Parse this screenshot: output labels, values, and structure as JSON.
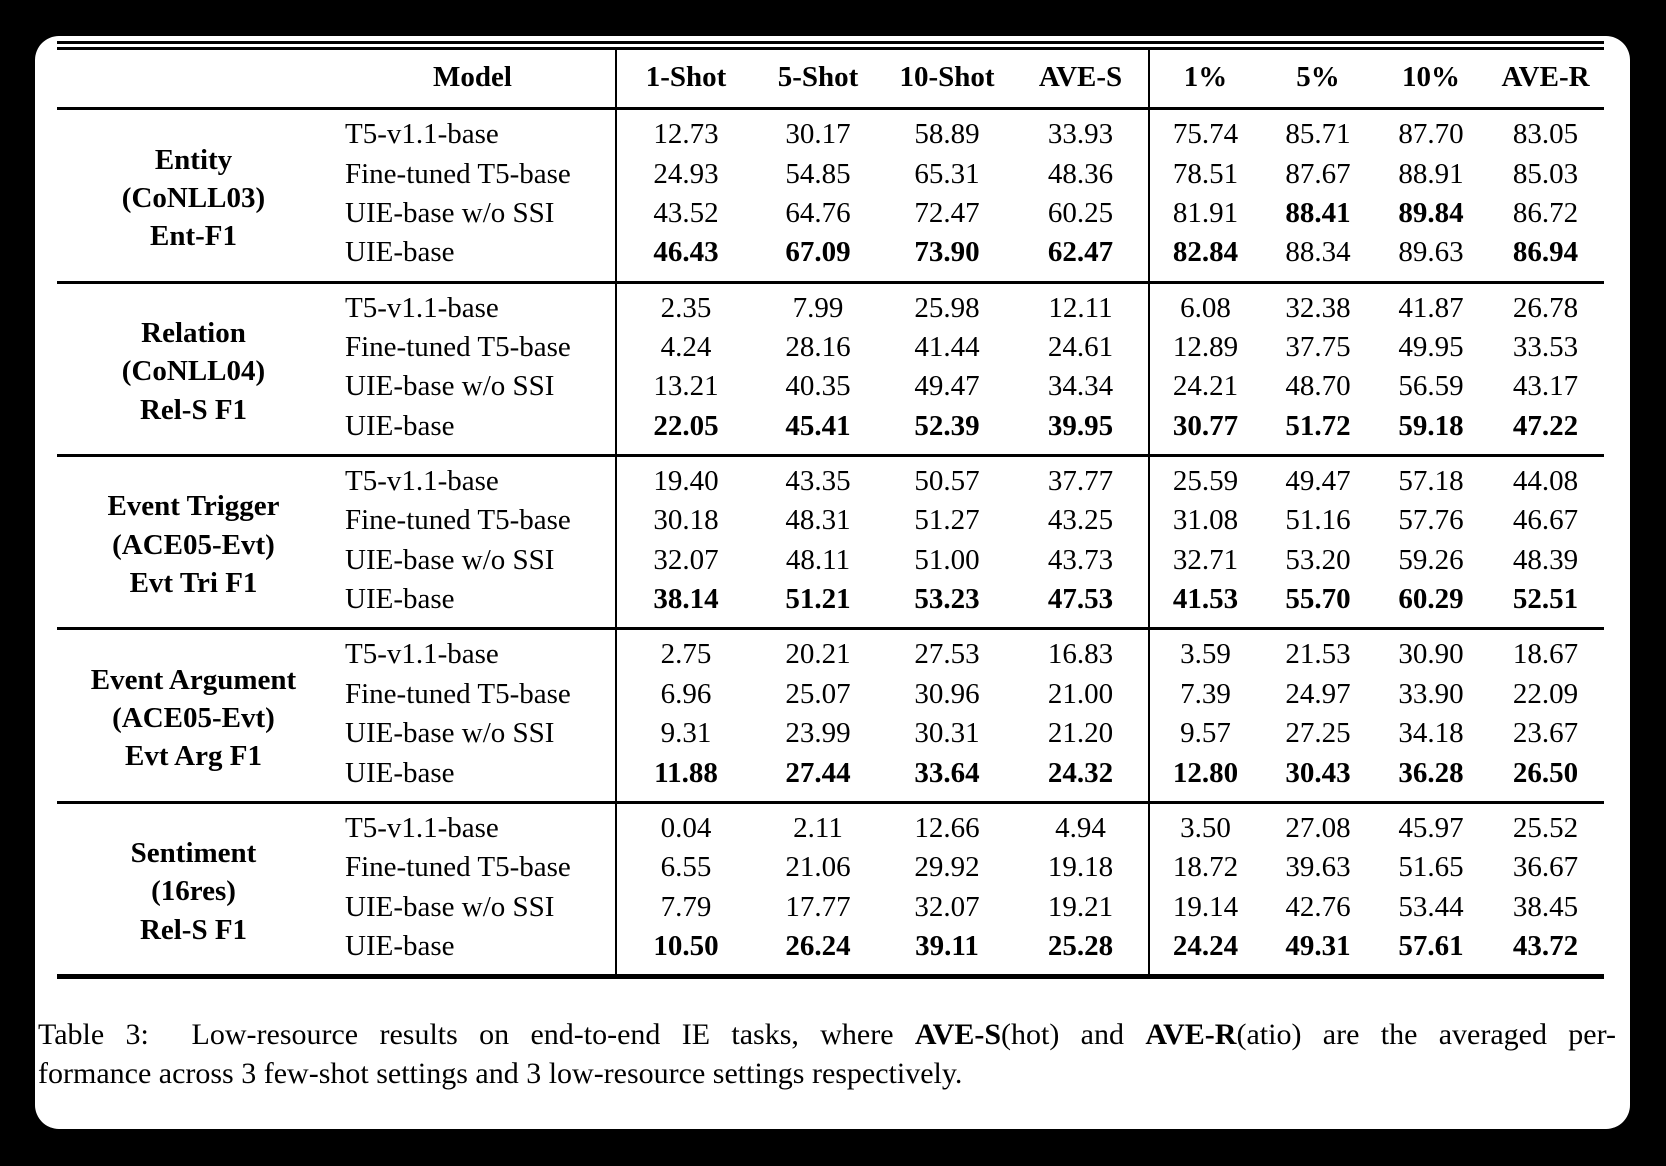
{
  "page": {
    "background_color": "#000000",
    "panel_color": "#ffffff",
    "text_color": "#000000"
  },
  "table": {
    "header": {
      "model_label": "Model",
      "columns": [
        "1-Shot",
        "5-Shot",
        "10-Shot",
        "AVE-S",
        "1%",
        "5%",
        "10%",
        "AVE-R"
      ]
    },
    "groups": [
      {
        "task": "Entity",
        "dataset": "(CoNLL03)",
        "metric": "Ent-F1",
        "rows": [
          {
            "model": "T5-v1.1-base",
            "values": [
              "12.73",
              "30.17",
              "58.89",
              "33.93",
              "75.74",
              "85.71",
              "87.70",
              "83.05"
            ],
            "bold": [
              0,
              0,
              0,
              0,
              0,
              0,
              0,
              0
            ]
          },
          {
            "model": "Fine-tuned T5-base",
            "values": [
              "24.93",
              "54.85",
              "65.31",
              "48.36",
              "78.51",
              "87.67",
              "88.91",
              "85.03"
            ],
            "bold": [
              0,
              0,
              0,
              0,
              0,
              0,
              0,
              0
            ]
          },
          {
            "model": "UIE-base w/o SSI",
            "values": [
              "43.52",
              "64.76",
              "72.47",
              "60.25",
              "81.91",
              "88.41",
              "89.84",
              "86.72"
            ],
            "bold": [
              0,
              0,
              0,
              0,
              0,
              1,
              1,
              0
            ]
          },
          {
            "model": "UIE-base",
            "values": [
              "46.43",
              "67.09",
              "73.90",
              "62.47",
              "82.84",
              "88.34",
              "89.63",
              "86.94"
            ],
            "bold": [
              1,
              1,
              1,
              1,
              1,
              0,
              0,
              1
            ]
          }
        ]
      },
      {
        "task": "Relation",
        "dataset": "(CoNLL04)",
        "metric": "Rel-S F1",
        "rows": [
          {
            "model": "T5-v1.1-base",
            "values": [
              "2.35",
              "7.99",
              "25.98",
              "12.11",
              "6.08",
              "32.38",
              "41.87",
              "26.78"
            ],
            "bold": [
              0,
              0,
              0,
              0,
              0,
              0,
              0,
              0
            ]
          },
          {
            "model": "Fine-tuned T5-base",
            "values": [
              "4.24",
              "28.16",
              "41.44",
              "24.61",
              "12.89",
              "37.75",
              "49.95",
              "33.53"
            ],
            "bold": [
              0,
              0,
              0,
              0,
              0,
              0,
              0,
              0
            ]
          },
          {
            "model": "UIE-base w/o SSI",
            "values": [
              "13.21",
              "40.35",
              "49.47",
              "34.34",
              "24.21",
              "48.70",
              "56.59",
              "43.17"
            ],
            "bold": [
              0,
              0,
              0,
              0,
              0,
              0,
              0,
              0
            ]
          },
          {
            "model": "UIE-base",
            "values": [
              "22.05",
              "45.41",
              "52.39",
              "39.95",
              "30.77",
              "51.72",
              "59.18",
              "47.22"
            ],
            "bold": [
              1,
              1,
              1,
              1,
              1,
              1,
              1,
              1
            ]
          }
        ]
      },
      {
        "task": "Event Trigger",
        "dataset": "(ACE05-Evt)",
        "metric": "Evt Tri F1",
        "rows": [
          {
            "model": "T5-v1.1-base",
            "values": [
              "19.40",
              "43.35",
              "50.57",
              "37.77",
              "25.59",
              "49.47",
              "57.18",
              "44.08"
            ],
            "bold": [
              0,
              0,
              0,
              0,
              0,
              0,
              0,
              0
            ]
          },
          {
            "model": "Fine-tuned T5-base",
            "values": [
              "30.18",
              "48.31",
              "51.27",
              "43.25",
              "31.08",
              "51.16",
              "57.76",
              "46.67"
            ],
            "bold": [
              0,
              0,
              0,
              0,
              0,
              0,
              0,
              0
            ]
          },
          {
            "model": "UIE-base w/o SSI",
            "values": [
              "32.07",
              "48.11",
              "51.00",
              "43.73",
              "32.71",
              "53.20",
              "59.26",
              "48.39"
            ],
            "bold": [
              0,
              0,
              0,
              0,
              0,
              0,
              0,
              0
            ]
          },
          {
            "model": "UIE-base",
            "values": [
              "38.14",
              "51.21",
              "53.23",
              "47.53",
              "41.53",
              "55.70",
              "60.29",
              "52.51"
            ],
            "bold": [
              1,
              1,
              1,
              1,
              1,
              1,
              1,
              1
            ]
          }
        ]
      },
      {
        "task": "Event Argument",
        "dataset": "(ACE05-Evt)",
        "metric": "Evt Arg F1",
        "rows": [
          {
            "model": "T5-v1.1-base",
            "values": [
              "2.75",
              "20.21",
              "27.53",
              "16.83",
              "3.59",
              "21.53",
              "30.90",
              "18.67"
            ],
            "bold": [
              0,
              0,
              0,
              0,
              0,
              0,
              0,
              0
            ]
          },
          {
            "model": "Fine-tuned T5-base",
            "values": [
              "6.96",
              "25.07",
              "30.96",
              "21.00",
              "7.39",
              "24.97",
              "33.90",
              "22.09"
            ],
            "bold": [
              0,
              0,
              0,
              0,
              0,
              0,
              0,
              0
            ]
          },
          {
            "model": "UIE-base w/o SSI",
            "values": [
              "9.31",
              "23.99",
              "30.31",
              "21.20",
              "9.57",
              "27.25",
              "34.18",
              "23.67"
            ],
            "bold": [
              0,
              0,
              0,
              0,
              0,
              0,
              0,
              0
            ]
          },
          {
            "model": "UIE-base",
            "values": [
              "11.88",
              "27.44",
              "33.64",
              "24.32",
              "12.80",
              "30.43",
              "36.28",
              "26.50"
            ],
            "bold": [
              1,
              1,
              1,
              1,
              1,
              1,
              1,
              1
            ]
          }
        ]
      },
      {
        "task": "Sentiment",
        "dataset": "(16res)",
        "metric": "Rel-S F1",
        "rows": [
          {
            "model": "T5-v1.1-base",
            "values": [
              "0.04",
              "2.11",
              "12.66",
              "4.94",
              "3.50",
              "27.08",
              "45.97",
              "25.52"
            ],
            "bold": [
              0,
              0,
              0,
              0,
              0,
              0,
              0,
              0
            ]
          },
          {
            "model": "Fine-tuned T5-base",
            "values": [
              "6.55",
              "21.06",
              "29.92",
              "19.18",
              "18.72",
              "39.63",
              "51.65",
              "36.67"
            ],
            "bold": [
              0,
              0,
              0,
              0,
              0,
              0,
              0,
              0
            ]
          },
          {
            "model": "UIE-base w/o SSI",
            "values": [
              "7.79",
              "17.77",
              "32.07",
              "19.21",
              "19.14",
              "42.76",
              "53.44",
              "38.45"
            ],
            "bold": [
              0,
              0,
              0,
              0,
              0,
              0,
              0,
              0
            ]
          },
          {
            "model": "UIE-base",
            "values": [
              "10.50",
              "26.24",
              "39.11",
              "25.28",
              "24.24",
              "49.31",
              "57.61",
              "43.72"
            ],
            "bold": [
              1,
              1,
              1,
              1,
              1,
              1,
              1,
              1
            ]
          }
        ]
      }
    ]
  },
  "caption": {
    "line1_parts": [
      {
        "text": "Table 3:  Low-resource results on end-to-end IE tasks, where ",
        "bold": false
      },
      {
        "text": "AVE-S",
        "bold": true
      },
      {
        "text": "(hot) and ",
        "bold": false
      },
      {
        "text": "AVE-R",
        "bold": true
      },
      {
        "text": "(atio) are the averaged per-",
        "bold": false
      }
    ],
    "line2": "formance across 3 few-shot settings and 3 low-resource settings respectively."
  }
}
